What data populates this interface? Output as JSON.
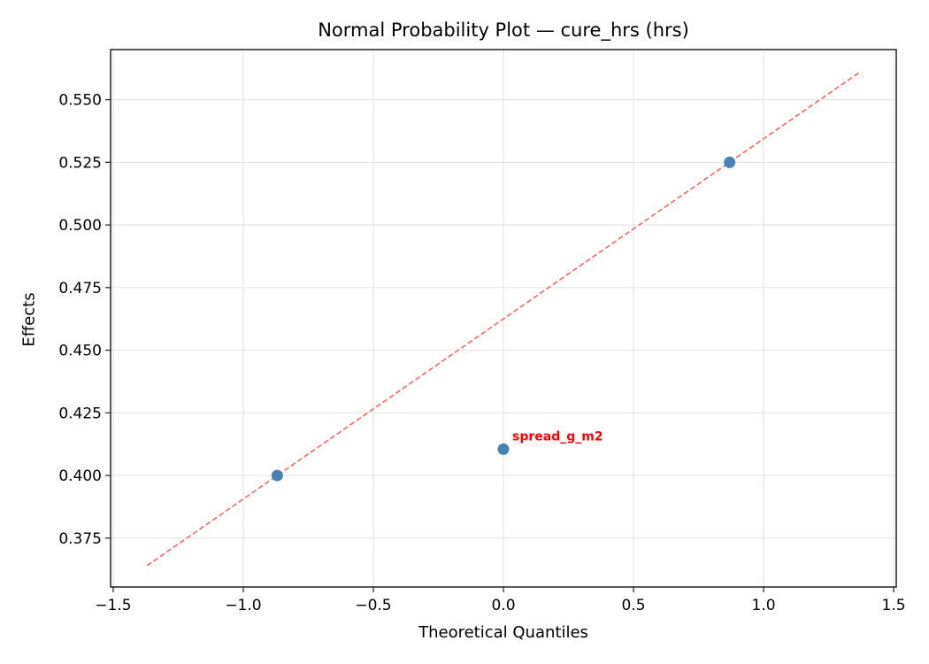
{
  "chart_data": {
    "type": "scatter",
    "title": "Normal Probability Plot — cure_hrs (hrs)",
    "xlabel": "Theoretical Quantiles",
    "ylabel": "Effects",
    "xlim": [
      -1.51,
      1.51
    ],
    "ylim": [
      0.3555,
      0.57
    ],
    "x_ticks": [
      -1.5,
      -1.0,
      -0.5,
      0.0,
      0.5,
      1.0,
      1.5
    ],
    "x_tick_labels": [
      "−1.5",
      "−1.0",
      "−0.5",
      "0.0",
      "0.5",
      "1.0",
      "1.5"
    ],
    "y_ticks": [
      0.375,
      0.4,
      0.425,
      0.45,
      0.475,
      0.5,
      0.525,
      0.55
    ],
    "y_tick_labels": [
      "0.375",
      "0.400",
      "0.425",
      "0.450",
      "0.475",
      "0.500",
      "0.525",
      "0.550"
    ],
    "grid": true,
    "points": [
      {
        "x": -0.8694,
        "y": 0.4,
        "label": ""
      },
      {
        "x": 0.0,
        "y": 0.4105,
        "label": "spread_g_m2"
      },
      {
        "x": 0.8694,
        "y": 0.525,
        "label": ""
      }
    ],
    "reference_line": {
      "x": [
        -1.37,
        1.37
      ],
      "y": [
        0.364,
        0.561
      ],
      "style": "dashed"
    },
    "annotations": [
      {
        "text": "spread_g_m2",
        "x": 0.0,
        "y": 0.4105,
        "color": "#ff0000"
      }
    ],
    "colors": {
      "points": "#4682b4",
      "reference_line": "#f26b63",
      "annotation": "#ff0000",
      "grid": "#e5e5e5"
    }
  }
}
